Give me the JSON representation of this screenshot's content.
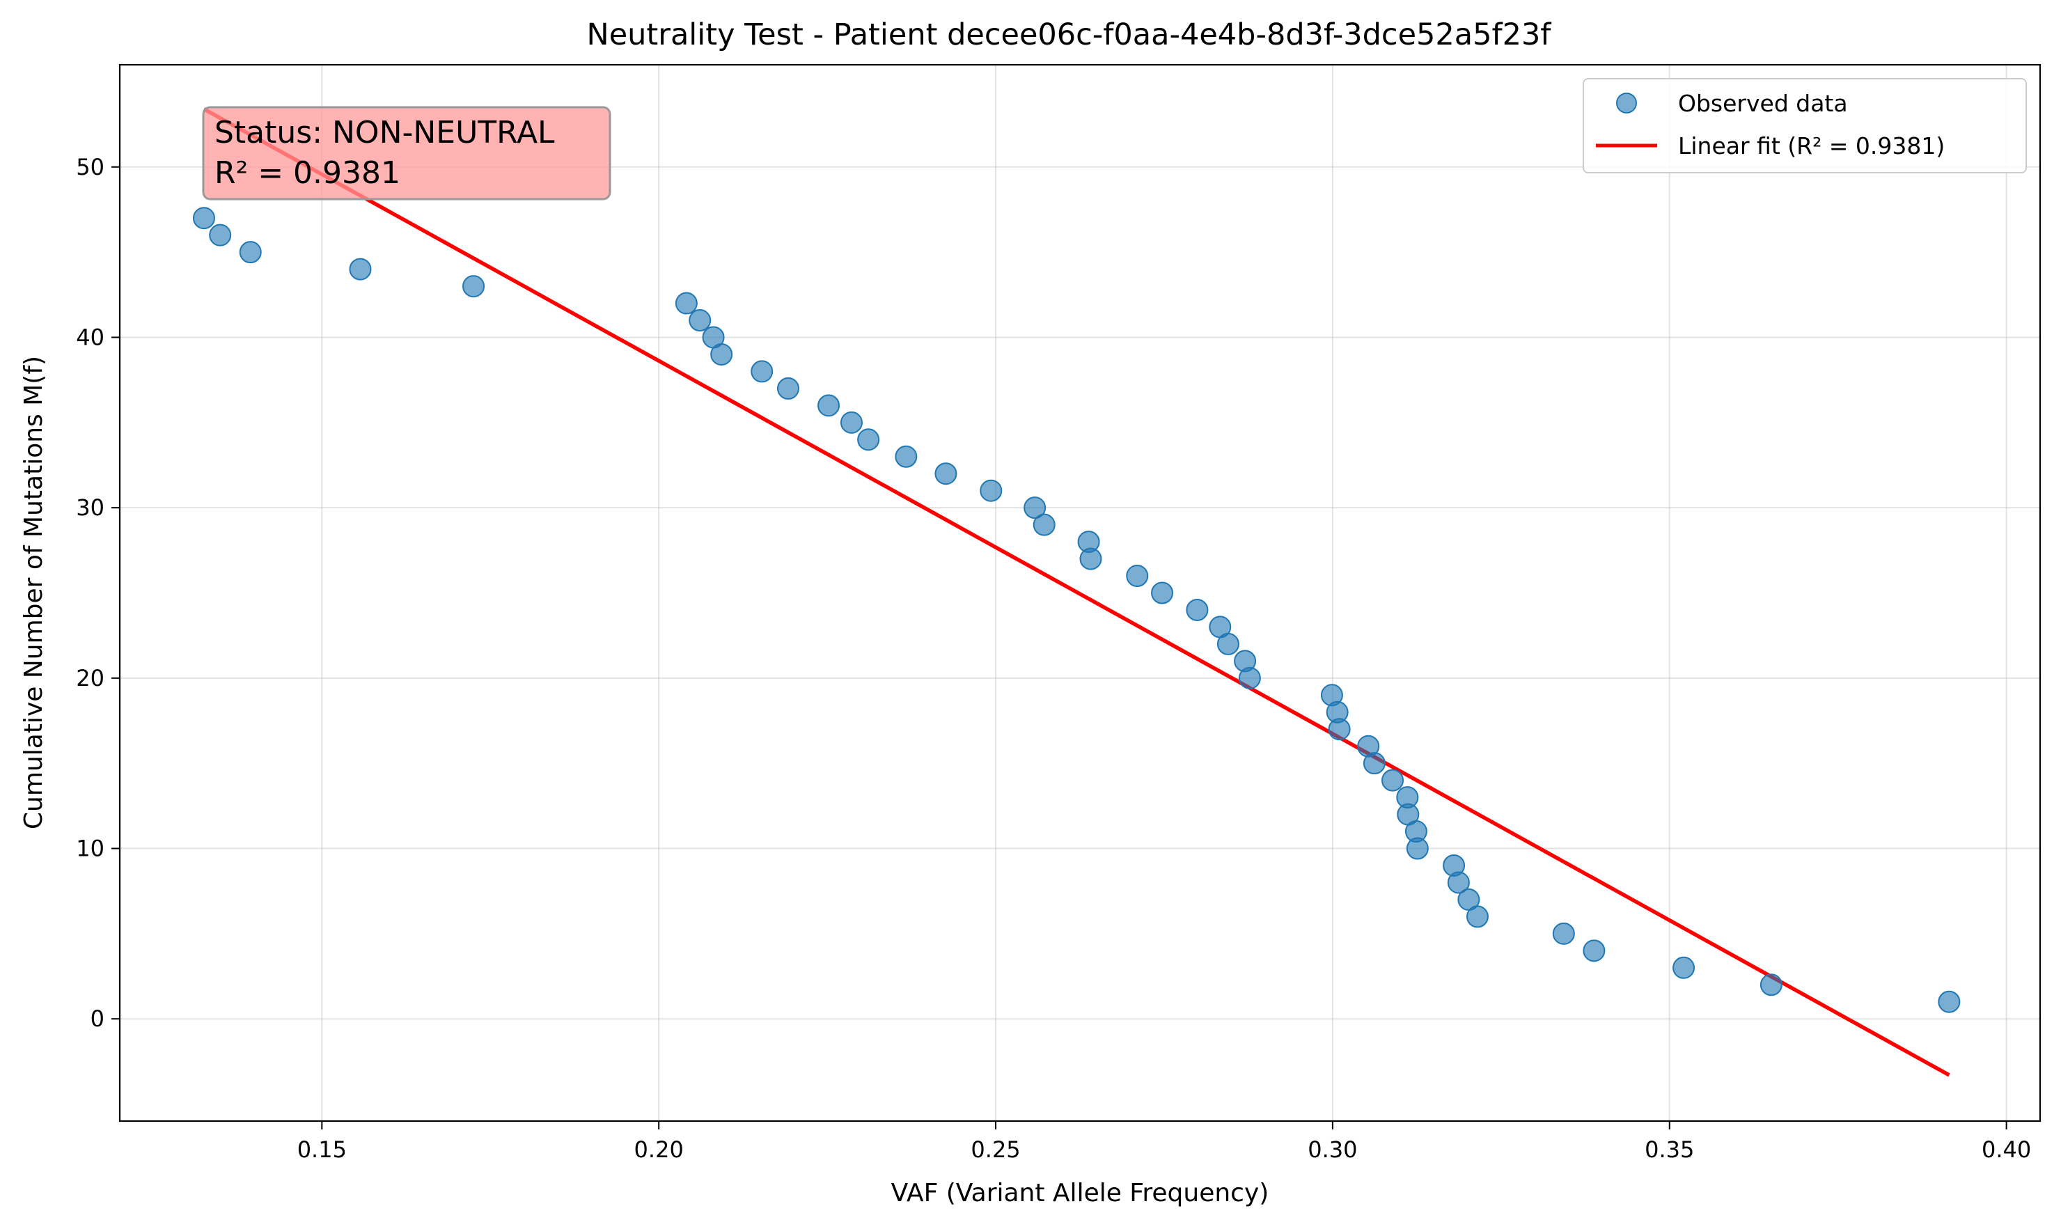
{
  "chart_data": {
    "type": "scatter",
    "title": "Neutrality Test - Patient decee06c-f0aa-4e4b-8d3f-3dce52a5f23f",
    "xlabel": "VAF (Variant Allele Frequency)",
    "ylabel": "Cumulative Number of Mutations M(f)",
    "xlim": [
      0.12,
      0.405
    ],
    "ylim": [
      -6,
      56
    ],
    "x_ticks": [
      0.15,
      0.2,
      0.25,
      0.3,
      0.35,
      0.4
    ],
    "x_tick_labels": [
      "0.15",
      "0.20",
      "0.25",
      "0.30",
      "0.35",
      "0.40"
    ],
    "y_ticks": [
      0,
      10,
      20,
      30,
      40,
      50
    ],
    "y_tick_labels": [
      "0",
      "10",
      "20",
      "30",
      "40",
      "50"
    ],
    "grid": true,
    "legend_position": "top-right",
    "annotation": {
      "line1": "Status: NON-NEUTRAL",
      "line2": "R² = 0.9381",
      "color": "#ff9999"
    },
    "series": [
      {
        "name": "Observed data",
        "kind": "scatter",
        "color": "#1f77b4",
        "points": [
          [
            0.1325,
            47
          ],
          [
            0.1349,
            46
          ],
          [
            0.1394,
            45
          ],
          [
            0.1557,
            44
          ],
          [
            0.1725,
            43
          ],
          [
            0.2041,
            42
          ],
          [
            0.2061,
            41
          ],
          [
            0.2081,
            40
          ],
          [
            0.2093,
            39
          ],
          [
            0.2153,
            38
          ],
          [
            0.2192,
            37
          ],
          [
            0.2252,
            36
          ],
          [
            0.2286,
            35
          ],
          [
            0.2311,
            34
          ],
          [
            0.2367,
            33
          ],
          [
            0.2426,
            32
          ],
          [
            0.2493,
            31
          ],
          [
            0.2558,
            30
          ],
          [
            0.2572,
            29
          ],
          [
            0.2638,
            28
          ],
          [
            0.2641,
            27
          ],
          [
            0.271,
            26
          ],
          [
            0.2747,
            25
          ],
          [
            0.2799,
            24
          ],
          [
            0.2833,
            23
          ],
          [
            0.2845,
            22
          ],
          [
            0.287,
            21
          ],
          [
            0.2877,
            20
          ],
          [
            0.2999,
            19
          ],
          [
            0.3007,
            18
          ],
          [
            0.301,
            17
          ],
          [
            0.3053,
            16
          ],
          [
            0.3062,
            15
          ],
          [
            0.3089,
            14
          ],
          [
            0.3111,
            13
          ],
          [
            0.3112,
            12
          ],
          [
            0.3124,
            11
          ],
          [
            0.3126,
            10
          ],
          [
            0.318,
            9
          ],
          [
            0.3187,
            8
          ],
          [
            0.3202,
            7
          ],
          [
            0.3215,
            6
          ],
          [
            0.3343,
            5
          ],
          [
            0.3388,
            4
          ],
          [
            0.3521,
            3
          ],
          [
            0.3651,
            2
          ],
          [
            0.3915,
            1
          ]
        ]
      },
      {
        "name": "Linear fit (R² = 0.9381)",
        "kind": "line",
        "color": "#ff0000",
        "points": [
          [
            0.1325,
            53.4
          ],
          [
            0.3915,
            -3.3
          ]
        ]
      }
    ]
  }
}
